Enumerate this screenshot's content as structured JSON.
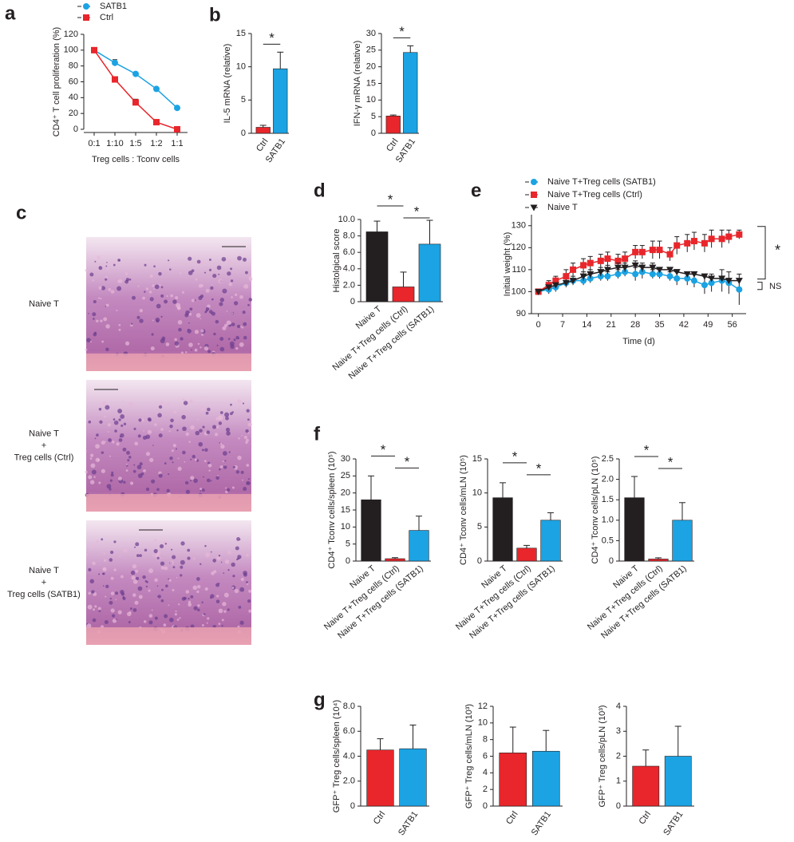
{
  "chart_data": [
    {
      "type": "line",
      "panel": "a",
      "ylabel": "CD4⁺ T cell proliferation (%)",
      "xlabel": "Treg cells : Tconv cells",
      "categories": [
        "0:1",
        "1:10",
        "1:5",
        "1:2",
        "1:1"
      ],
      "series": [
        {
          "name": "SATB1",
          "color": "#1ba3e3",
          "marker": "circle",
          "values": [
            100,
            84,
            70,
            51,
            27
          ],
          "errors": [
            0,
            4,
            2,
            1,
            1
          ]
        },
        {
          "name": "Ctrl",
          "color": "#e8262b",
          "marker": "square",
          "values": [
            100,
            63,
            34,
            9,
            0
          ],
          "errors": [
            0,
            2,
            4,
            3,
            1
          ]
        }
      ],
      "ylim": [
        0,
        120
      ],
      "yticks": [
        0,
        20,
        40,
        60,
        80,
        100,
        120
      ],
      "legend": "top"
    },
    {
      "type": "bar",
      "panel": "b",
      "ylabel": "IL-5 mRNA (relative)",
      "categories": [
        "Ctrl",
        "SATB1"
      ],
      "values": [
        0.9,
        9.7
      ],
      "errors": [
        0.3,
        2.5
      ],
      "colors": [
        "#e8262b",
        "#1ba3e3"
      ],
      "ylim": [
        0,
        15
      ],
      "yticks": [
        0,
        5,
        10,
        15
      ],
      "significance": [
        {
          "label": "*",
          "between": [
            0,
            1
          ]
        }
      ]
    },
    {
      "type": "bar",
      "ylabel": "IFN-γ mRNA (relative)",
      "categories": [
        "Ctrl",
        "SATB1"
      ],
      "values": [
        5.2,
        24.3
      ],
      "errors": [
        0.3,
        2.0
      ],
      "colors": [
        "#e8262b",
        "#1ba3e3"
      ],
      "ylim": [
        0,
        30
      ],
      "yticks": [
        0,
        5,
        10,
        15,
        20,
        25,
        30
      ],
      "significance": [
        {
          "label": "*",
          "between": [
            0,
            1
          ]
        }
      ]
    },
    {
      "type": "bar",
      "panel": "d",
      "ylabel": "Histolgical score",
      "categories": [
        "Naive T",
        "Naive T+Treg cells (Ctrl)",
        "Naive T+Treg cells (SATB1)"
      ],
      "values": [
        8.5,
        1.8,
        7.0
      ],
      "errors": [
        1.3,
        1.8,
        2.9
      ],
      "colors": [
        "#231f20",
        "#e8262b",
        "#1ba3e3"
      ],
      "ylim": [
        0,
        10
      ],
      "yticks": [
        0,
        {
          "value": 2,
          "label": "2.0"
        },
        {
          "value": 4,
          "label": "4.0"
        },
        {
          "value": 6,
          "label": "6.0"
        },
        {
          "value": 8,
          "label": "8.0"
        },
        {
          "value": 10,
          "label": "10.0"
        }
      ],
      "significance": [
        {
          "label": "*",
          "between": [
            0,
            1
          ]
        },
        {
          "label": "*",
          "between": [
            1,
            2
          ]
        }
      ]
    },
    {
      "type": "line",
      "panel": "e",
      "ylabel": "Initial weight (%)",
      "xlabel": "Time (d)",
      "x": [
        0,
        3,
        5,
        8,
        10,
        13,
        15,
        18,
        20,
        23,
        25,
        28,
        30,
        33,
        35,
        38,
        40,
        43,
        45,
        48,
        50,
        53,
        55,
        58
      ],
      "series": [
        {
          "name": "Naive T+Treg cells (SATB1)",
          "color": "#1ba3e3",
          "marker": "circle",
          "values": [
            100,
            101,
            102,
            104,
            105,
            105,
            106,
            107,
            107,
            108,
            109,
            108,
            109,
            108,
            108,
            107,
            106,
            106,
            105,
            103,
            104,
            105,
            104,
            101
          ],
          "errors": [
            1,
            2,
            2,
            2,
            2,
            2,
            2,
            2,
            2,
            2,
            2,
            3,
            3,
            2,
            2,
            2,
            3,
            3,
            3,
            4,
            4,
            5,
            5,
            7
          ]
        },
        {
          "name": "Naive T+Treg cells (Ctrl)",
          "color": "#e8262b",
          "marker": "square",
          "values": [
            100,
            103,
            105,
            107,
            110,
            112,
            113,
            114,
            115,
            114,
            115,
            118,
            118,
            119,
            119,
            117,
            121,
            122,
            123,
            122,
            124,
            124,
            125,
            126
          ],
          "errors": [
            1,
            2,
            2,
            3,
            3,
            3,
            3,
            3,
            3,
            3,
            3,
            3,
            3,
            4,
            4,
            3,
            4,
            4,
            4,
            4,
            4,
            4,
            3,
            2
          ]
        },
        {
          "name": "Naive T",
          "color": "#231f20",
          "marker": "triangle-down",
          "values": [
            100,
            102,
            103,
            104,
            105,
            107,
            108,
            109,
            110,
            111,
            111,
            112,
            111,
            111,
            110,
            110,
            109,
            108,
            108,
            107,
            106,
            106,
            105,
            105
          ],
          "errors": [
            1,
            1,
            1,
            1,
            1,
            2,
            2,
            2,
            2,
            2,
            2,
            2,
            2,
            2,
            1,
            1,
            1,
            1,
            1,
            1,
            1,
            1,
            1,
            1
          ]
        }
      ],
      "xlim": [
        -2,
        60
      ],
      "xticks": [
        0,
        7,
        14,
        21,
        28,
        35,
        42,
        49,
        56
      ],
      "ylim": [
        90,
        135
      ],
      "yticks": [
        90,
        100,
        110,
        120,
        130
      ],
      "legend": "top",
      "annotations": [
        "*",
        "NS"
      ]
    },
    {
      "type": "bar",
      "panel": "f",
      "ylabel": "CD4⁺ Tconv cells/spleen (10⁵)",
      "categories": [
        "Naive T",
        "Naive T+Treg cells (Ctrl)",
        "Naive T+Treg cells (SATB1)"
      ],
      "values": [
        18,
        0.7,
        9
      ],
      "errors": [
        7,
        0.3,
        4.2
      ],
      "colors": [
        "#231f20",
        "#e8262b",
        "#1ba3e3"
      ],
      "ylim": [
        0,
        30
      ],
      "yticks": [
        0,
        5,
        10,
        15,
        20,
        25,
        30
      ],
      "significance": [
        {
          "label": "*",
          "between": [
            0,
            1
          ]
        },
        {
          "label": "*",
          "between": [
            1,
            2
          ]
        }
      ]
    },
    {
      "type": "bar",
      "ylabel": "CD4⁺ Tconv cells/mLN (10⁵)",
      "categories": [
        "Naive T",
        "Naive T+Treg cells (Ctrl)",
        "Naive T+Treg cells (SATB1)"
      ],
      "values": [
        9.3,
        1.9,
        6.0
      ],
      "errors": [
        2.2,
        0.4,
        1.1
      ],
      "colors": [
        "#231f20",
        "#e8262b",
        "#1ba3e3"
      ],
      "ylim": [
        0,
        15
      ],
      "yticks": [
        0,
        5,
        10,
        15
      ],
      "significance": [
        {
          "label": "*",
          "between": [
            0,
            1
          ]
        },
        {
          "label": "*",
          "between": [
            1,
            2
          ]
        }
      ]
    },
    {
      "type": "bar",
      "ylabel": "CD4⁺ Tconv cells/pLN (10⁵)",
      "categories": [
        "Naive T",
        "Naive T+Treg cells (Ctrl)",
        "Naive T+Treg cells (SATB1)"
      ],
      "values": [
        1.55,
        0.05,
        1.0
      ],
      "errors": [
        0.52,
        0.03,
        0.43
      ],
      "colors": [
        "#231f20",
        "#e8262b",
        "#1ba3e3"
      ],
      "ylim": [
        0,
        2.5
      ],
      "yticks": [
        0,
        0.5,
        {
          "value": 1,
          "label": "1.0"
        },
        1.5,
        {
          "value": 2,
          "label": "2.0"
        },
        2.5
      ],
      "significance": [
        {
          "label": "*",
          "between": [
            0,
            1
          ]
        },
        {
          "label": "*",
          "between": [
            1,
            2
          ]
        }
      ]
    },
    {
      "type": "bar",
      "panel": "g",
      "ylabel": "GFP⁺ Treg cells/spleen (10⁴)",
      "categories": [
        "Ctrl",
        "SATB1"
      ],
      "values": [
        4.5,
        4.6
      ],
      "errors": [
        0.9,
        1.9
      ],
      "colors": [
        "#e8262b",
        "#1ba3e3"
      ],
      "ylim": [
        0,
        8
      ],
      "yticks": [
        0,
        {
          "value": 2,
          "label": "2.0"
        },
        {
          "value": 4,
          "label": "4.0"
        },
        {
          "value": 6,
          "label": "6.0"
        },
        {
          "value": 8,
          "label": "8.0"
        }
      ]
    },
    {
      "type": "bar",
      "ylabel": "GFP⁺ Treg cells/mLN (10³)",
      "categories": [
        "Ctrl",
        "SATB1"
      ],
      "values": [
        6.4,
        6.6
      ],
      "errors": [
        3.1,
        2.5
      ],
      "colors": [
        "#e8262b",
        "#1ba3e3"
      ],
      "ylim": [
        0,
        12
      ],
      "yticks": [
        0,
        2,
        4,
        6,
        8,
        10,
        12
      ]
    },
    {
      "type": "bar",
      "ylabel": "GFP⁺ Treg cells/pLN (10³)",
      "categories": [
        "Ctrl",
        "SATB1"
      ],
      "values": [
        1.6,
        2.0
      ],
      "errors": [
        0.65,
        1.2
      ],
      "colors": [
        "#e8262b",
        "#1ba3e3"
      ],
      "ylim": [
        0,
        4
      ],
      "yticks": [
        0,
        1,
        2,
        3,
        4
      ]
    }
  ],
  "histology": {
    "panel": "c",
    "rows": [
      {
        "lines": [
          "Naive T"
        ]
      },
      {
        "lines": [
          "Naive T",
          "+",
          "Treg cells (Ctrl)"
        ]
      },
      {
        "lines": [
          "Naive T",
          "+",
          "Treg cells (SATB1)"
        ]
      }
    ]
  }
}
